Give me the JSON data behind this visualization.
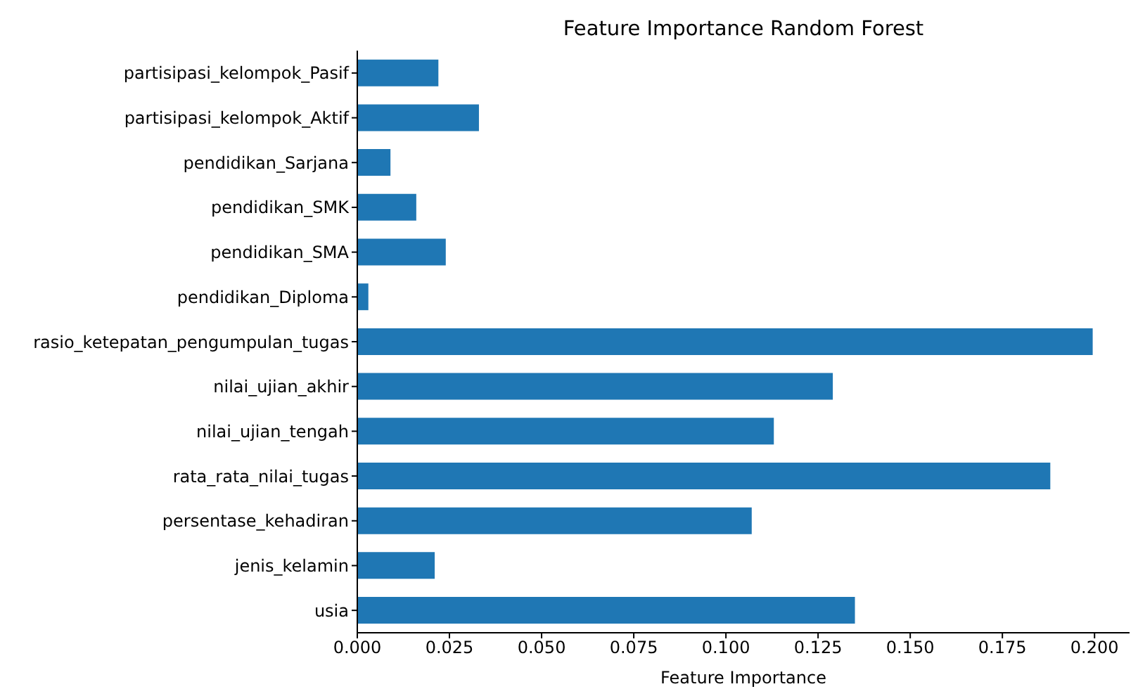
{
  "chart_data": {
    "type": "bar",
    "orientation": "horizontal",
    "title": "Feature Importance Random Forest",
    "xlabel": "Feature Importance",
    "categories": [
      "partisipasi_kelompok_Pasif",
      "partisipasi_kelompok_Aktif",
      "pendidikan_Sarjana",
      "pendidikan_SMK",
      "pendidikan_SMA",
      "pendidikan_Diploma",
      "rasio_ketepatan_pengumpulan_tugas",
      "nilai_ujian_akhir",
      "nilai_ujian_tengah",
      "rata_rata_nilai_tugas",
      "persentase_kehadiran",
      "jenis_kelamin",
      "usia"
    ],
    "values": [
      0.022,
      0.033,
      0.009,
      0.016,
      0.024,
      0.003,
      0.1995,
      0.129,
      0.113,
      0.188,
      0.107,
      0.021,
      0.135
    ],
    "color": "#1f77b4",
    "xlim": [
      0,
      0.2095
    ],
    "xticks": [
      {
        "value": 0,
        "label": "0.000"
      },
      {
        "value": 0.025,
        "label": "0.025"
      },
      {
        "value": 0.05,
        "label": "0.050"
      },
      {
        "value": 0.075,
        "label": "0.075"
      },
      {
        "value": 0.1,
        "label": "0.100"
      },
      {
        "value": 0.125,
        "label": "0.125"
      },
      {
        "value": 0.15,
        "label": "0.150"
      },
      {
        "value": 0.175,
        "label": "0.175"
      },
      {
        "value": 0.2,
        "label": "0.200"
      }
    ],
    "grid": false,
    "legend": false
  }
}
